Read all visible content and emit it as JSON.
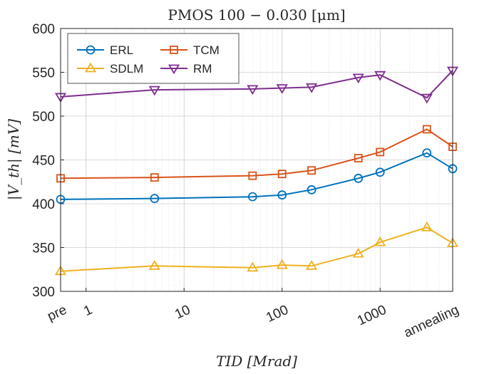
{
  "chart_data": {
    "type": "line",
    "title": "PMOS 100 − 0.030 [μm]",
    "xlabel": "TID [Mrad]",
    "ylabel": "|V_th| [mV]",
    "x_scale": "log",
    "x": [
      "pre",
      5,
      50,
      100,
      200,
      600,
      1000,
      3000,
      "annealing"
    ],
    "x_ticks": [
      "pre",
      "1",
      "10",
      "100",
      "1000",
      "annealing"
    ],
    "ylim": [
      300,
      600
    ],
    "y_ticks": [
      300,
      350,
      400,
      450,
      500,
      550,
      600
    ],
    "grid": true,
    "legend_position": "top-left",
    "series": [
      {
        "name": "ERL",
        "marker": "circle",
        "color": "#0072BD",
        "values": [
          405,
          406,
          408,
          410,
          416,
          429,
          436,
          458,
          440
        ]
      },
      {
        "name": "TCM",
        "marker": "square",
        "color": "#D95319",
        "values": [
          429,
          430,
          432,
          434,
          438,
          452,
          459,
          485,
          465
        ]
      },
      {
        "name": "SDLM",
        "marker": "triangle-up",
        "color": "#EDB120",
        "values": [
          323,
          329,
          327,
          330,
          329,
          343,
          356,
          373,
          355
        ]
      },
      {
        "name": "RM",
        "marker": "triangle-down",
        "color": "#7E2F8E",
        "values": [
          522,
          530,
          531,
          532,
          533,
          544,
          547,
          521,
          552
        ]
      }
    ]
  }
}
